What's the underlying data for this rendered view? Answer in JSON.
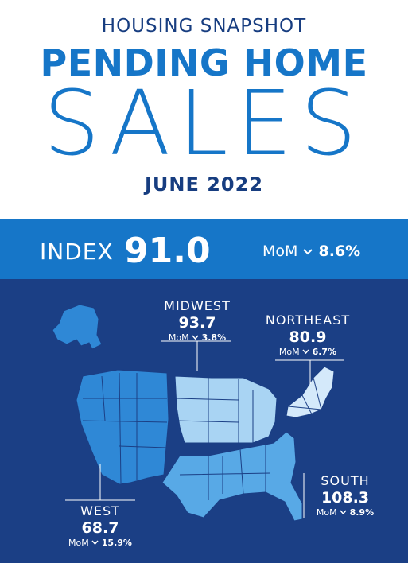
{
  "header": {
    "kicker": "HOUSING SNAPSHOT",
    "title_line1": "PENDING HOME",
    "title_line2": "SALES",
    "date": "JUNE 2022"
  },
  "index": {
    "label": "INDEX",
    "value": "91.0",
    "mom_label": "MoM",
    "mom_direction": "down",
    "mom_pct": "8.6%"
  },
  "regions": {
    "midwest": {
      "name": "MIDWEST",
      "value": "93.7",
      "mom_label": "MoM",
      "direction": "down",
      "mom_pct": "3.8%"
    },
    "northeast": {
      "name": "NORTHEAST",
      "value": "80.9",
      "mom_label": "MoM",
      "direction": "down",
      "mom_pct": "6.7%"
    },
    "south": {
      "name": "SOUTH",
      "value": "108.3",
      "mom_label": "MoM",
      "direction": "down",
      "mom_pct": "8.9%"
    },
    "west": {
      "name": "WEST",
      "value": "68.7",
      "mom_label": "MoM",
      "direction": "down",
      "mom_pct": "15.9%"
    }
  },
  "colors": {
    "navy": "#1b3f85",
    "brand_blue": "#1676c8",
    "dark_text": "#173d80",
    "west_fill": "#2f88d6",
    "midwest_fill": "#a9d4f3",
    "northeast_fill": "#d4e9fa",
    "south_fill": "#58a9e6"
  },
  "icons": {
    "down": "chevron-down-icon"
  }
}
